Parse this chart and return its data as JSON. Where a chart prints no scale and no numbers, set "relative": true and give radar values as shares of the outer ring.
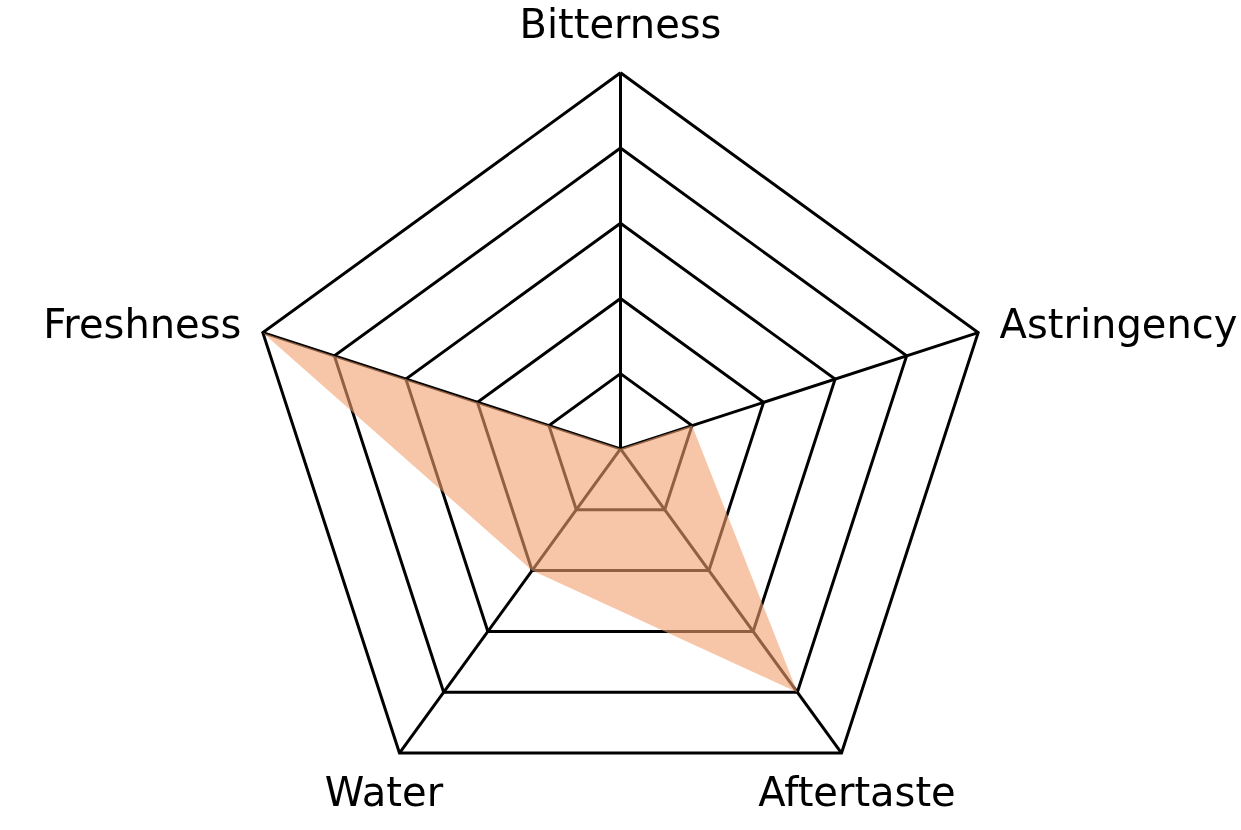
{
  "chart_data": {
    "type": "radar",
    "relative": true,
    "grid": true,
    "categories": [
      "Bitterness",
      "Astringency",
      "Aftertaste",
      "Water",
      "Freshness"
    ],
    "series": [
      {
        "color": "#f1a070",
        "values": [
          0,
          0.2,
          0.8,
          0.4,
          1.0
        ]
      }
    ]
  }
}
